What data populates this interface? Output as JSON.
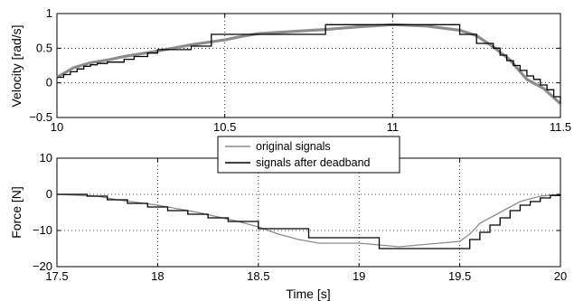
{
  "chart_data": [
    {
      "type": "line",
      "xlabel": "",
      "ylabel": "Velocity [rad/s]",
      "xlim": [
        10,
        11.5
      ],
      "ylim": [
        -0.5,
        1
      ],
      "xticks": [
        "10",
        "10.5",
        "11",
        "11.5"
      ],
      "yticks": [
        "−0.5",
        "0",
        "0.5",
        "1"
      ],
      "grid": true,
      "series": [
        {
          "name": "original signals",
          "color": "#8c8c8c",
          "x": [
            10.0,
            10.05,
            10.1,
            10.15,
            10.2,
            10.3,
            10.4,
            10.5,
            10.55,
            10.6,
            10.7,
            10.8,
            10.9,
            11.0,
            11.1,
            11.2,
            11.25,
            11.3,
            11.35,
            11.4,
            11.45,
            11.5
          ],
          "y": [
            0.08,
            0.22,
            0.29,
            0.33,
            0.38,
            0.46,
            0.55,
            0.62,
            0.67,
            0.71,
            0.74,
            0.77,
            0.81,
            0.84,
            0.82,
            0.76,
            0.68,
            0.52,
            0.33,
            0.05,
            -0.08,
            -0.3
          ]
        },
        {
          "name": "signals after deadband",
          "color": "#000000",
          "x": [
            10.0,
            10.02,
            10.04,
            10.06,
            10.08,
            10.1,
            10.12,
            10.15,
            10.2,
            10.23,
            10.27,
            10.3,
            10.4,
            10.46,
            10.55,
            10.6,
            10.7,
            10.8,
            10.9,
            11.0,
            11.1,
            11.2,
            11.25,
            11.3,
            11.32,
            11.34,
            11.36,
            11.38,
            11.4,
            11.42,
            11.44,
            11.46,
            11.48,
            11.5
          ],
          "y": [
            0.08,
            0.12,
            0.16,
            0.2,
            0.24,
            0.26,
            0.28,
            0.3,
            0.34,
            0.38,
            0.43,
            0.48,
            0.53,
            0.7,
            0.7,
            0.7,
            0.7,
            0.84,
            0.84,
            0.84,
            0.84,
            0.7,
            0.57,
            0.5,
            0.4,
            0.32,
            0.25,
            0.18,
            0.1,
            0.05,
            -0.03,
            -0.1,
            -0.2,
            -0.3
          ]
        }
      ]
    },
    {
      "type": "line",
      "xlabel": "Time [s]",
      "ylabel": "Force [N]",
      "xlim": [
        17.5,
        20
      ],
      "ylim": [
        -20,
        10
      ],
      "xticks": [
        "17.5",
        "18",
        "18.5",
        "19",
        "19.5",
        "20"
      ],
      "yticks": [
        "−20",
        "−10",
        "0",
        "10"
      ],
      "grid": true,
      "legend": {
        "position": "top-center",
        "entries": [
          {
            "label": "original signals",
            "color": "#8c8c8c"
          },
          {
            "label": "signals after deadband",
            "color": "#000000"
          }
        ]
      },
      "series": [
        {
          "name": "original signals",
          "color": "#8c8c8c",
          "x": [
            17.5,
            17.7,
            17.8,
            18.0,
            18.2,
            18.4,
            18.5,
            18.6,
            18.7,
            18.8,
            19.0,
            19.1,
            19.2,
            19.4,
            19.5,
            19.55,
            19.6,
            19.7,
            19.8,
            19.9,
            20.0
          ],
          "y": [
            0,
            -0.5,
            -1.5,
            -3,
            -5,
            -7.5,
            -9,
            -11,
            -12.5,
            -13.5,
            -13.5,
            -14,
            -14.5,
            -13.5,
            -13,
            -11,
            -8,
            -5,
            -2,
            -0.5,
            0
          ]
        },
        {
          "name": "signals after deadband",
          "color": "#000000",
          "x": [
            17.5,
            17.65,
            17.75,
            17.85,
            17.95,
            18.05,
            18.15,
            18.25,
            18.35,
            18.5,
            18.75,
            19.1,
            19.55,
            19.6,
            19.65,
            19.7,
            19.75,
            19.8,
            19.85,
            19.9,
            19.95,
            20.0
          ],
          "y": [
            0,
            -0.5,
            -1.5,
            -2.5,
            -3.5,
            -4.5,
            -5.5,
            -6.5,
            -7.5,
            -9.5,
            -12,
            -15,
            -12.5,
            -10.5,
            -8.5,
            -6.5,
            -4.5,
            -3,
            -2,
            -1,
            -0.3,
            0
          ]
        }
      ]
    }
  ]
}
